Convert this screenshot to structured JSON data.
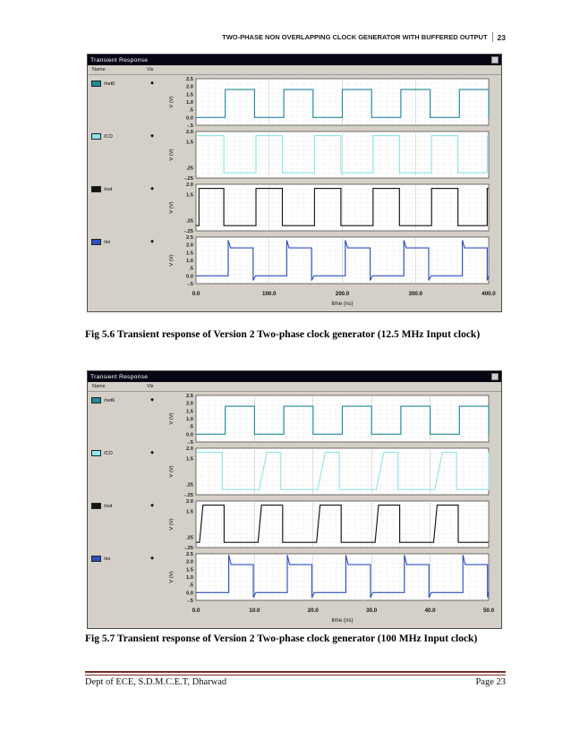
{
  "header": {
    "title": "TWO-PHASE NON OVERLAPPING CLOCK GENERATOR WITH BUFFERED OUTPUT",
    "page_number": "23"
  },
  "captions": [
    {
      "text": "Fig 5.6 Transient response of Version 2 Two-phase clock generator (12.5 MHz Input clock)"
    },
    {
      "text": "Fig 5.7 Transient response of Version 2 Two-phase clock generator (100 MHz Input clock)"
    }
  ],
  "footer": {
    "left": "Dept of ECE, S.D.M.C.E.T, Dharwad",
    "right": "Page 23",
    "rule_color": "#7b2927"
  },
  "chart_data": [
    {
      "type": "line",
      "window_title": "Transient Response",
      "legend_columns": {
        "name": "Name",
        "vis": "Vis"
      },
      "xlabel": "time (ns)",
      "x_range": [
        0,
        400
      ],
      "x_ticks": [
        {
          "label": "0.0",
          "value": 0
        },
        {
          "label": "100.0",
          "value": 100
        },
        {
          "label": "200.0",
          "value": 200
        },
        {
          "label": "300.0",
          "value": 300
        },
        {
          "label": "400.0",
          "value": 400
        }
      ],
      "signals": [
        {
          "name": "/net6",
          "color": "#1f8a99",
          "ylabel": "V (V)",
          "y_range": [
            -0.5,
            2.5
          ],
          "y_ticks": [
            {
              "label": "2.5",
              "value": 2.5
            },
            {
              "label": "2.0",
              "value": 2.0
            },
            {
              "label": "1.5",
              "value": 1.5
            },
            {
              "label": "1.0",
              "value": 1.0
            },
            {
              "label": ".5",
              "value": 0.5
            },
            {
              "label": "0.0",
              "value": 0.0
            },
            {
              "label": "-.5",
              "value": -0.5
            }
          ],
          "low": 0,
          "high": 1.8,
          "initial_level": "low",
          "toggle_times_ns": [
            40,
            80,
            120,
            160,
            200,
            240,
            280,
            320,
            360,
            400
          ]
        },
        {
          "name": "/CO",
          "color": "#8fe6ea",
          "ylabel": "V (V)",
          "y_range": [
            -0.25,
            2.0
          ],
          "y_ticks": [
            {
              "label": "2.0",
              "value": 2.0
            },
            {
              "label": "1.5",
              "value": 1.5
            },
            {
              "label": ".25",
              "value": 0.25
            },
            {
              "label": "-.25",
              "value": -0.25
            }
          ],
          "low": 0,
          "high": 1.8,
          "initial_level": "high",
          "toggle_times_ns": [
            38,
            82,
            118,
            162,
            198,
            242,
            278,
            322,
            358,
            398
          ]
        },
        {
          "name": "/out",
          "color": "#141414",
          "ylabel": "V (V)",
          "y_range": [
            -0.25,
            2.0
          ],
          "y_ticks": [
            {
              "label": "2.0",
              "value": 2.0
            },
            {
              "label": "1.5",
              "value": 1.5
            },
            {
              "label": ".25",
              "value": 0.25
            },
            {
              "label": "-.25",
              "value": -0.25
            }
          ],
          "low": 0,
          "high": 1.8,
          "initial_level": "low",
          "toggle_times_ns": [
            4,
            38,
            82,
            118,
            162,
            198,
            242,
            278,
            322,
            358,
            398
          ]
        },
        {
          "name": "/xo",
          "color": "#2d4fc0",
          "ylabel": "V (V)",
          "y_range": [
            -0.5,
            2.5
          ],
          "y_ticks": [
            {
              "label": "2.5",
              "value": 2.5
            },
            {
              "label": "2.0",
              "value": 2.0
            },
            {
              "label": "1.5",
              "value": 1.5
            },
            {
              "label": "1.0",
              "value": 1.0
            },
            {
              "label": ".5",
              "value": 0.5
            },
            {
              "label": "0.0",
              "value": 0.0
            },
            {
              "label": "-.5",
              "value": -0.5
            }
          ],
          "low": 0,
          "high": 1.8,
          "initial_level": "low",
          "overshoot": 2.3,
          "undershoot": -0.3,
          "toggle_times_ns": [
            44,
            78,
            124,
            158,
            204,
            238,
            284,
            318,
            364,
            398
          ]
        }
      ]
    },
    {
      "type": "line",
      "window_title": "Transient Response",
      "legend_columns": {
        "name": "Name",
        "vis": "Vis"
      },
      "xlabel": "time (ns)",
      "x_range": [
        0,
        50
      ],
      "x_ticks": [
        {
          "label": "0.0",
          "value": 0
        },
        {
          "label": "10.0",
          "value": 10
        },
        {
          "label": "20.0",
          "value": 20
        },
        {
          "label": "30.0",
          "value": 30
        },
        {
          "label": "40.0",
          "value": 40
        },
        {
          "label": "50.0",
          "value": 50
        }
      ],
      "signals": [
        {
          "name": "/net6",
          "color": "#1f8a99",
          "ylabel": "V (V)",
          "y_range": [
            -0.5,
            2.5
          ],
          "y_ticks": [
            {
              "label": "2.5",
              "value": 2.5
            },
            {
              "label": "2.0",
              "value": 2.0
            },
            {
              "label": "1.5",
              "value": 1.5
            },
            {
              "label": "1.0",
              "value": 1.0
            },
            {
              "label": ".5",
              "value": 0.5
            },
            {
              "label": "0.0",
              "value": 0.0
            },
            {
              "label": "-.5",
              "value": -0.5
            }
          ],
          "low": 0,
          "high": 1.8,
          "initial_level": "low",
          "toggle_times_ns": [
            5,
            10,
            15,
            20,
            25,
            30,
            35,
            40,
            45,
            50
          ]
        },
        {
          "name": "/CO",
          "color": "#8fe6ea",
          "ylabel": "V (V)",
          "y_range": [
            -0.25,
            2.0
          ],
          "y_ticks": [
            {
              "label": "2.0",
              "value": 2.0
            },
            {
              "label": "1.5",
              "value": 1.5
            },
            {
              "label": ".25",
              "value": 0.25
            },
            {
              "label": "-.25",
              "value": -0.25
            }
          ],
          "low": 0,
          "high": 1.8,
          "initial_level": "high",
          "rise_ns": 1.3,
          "toggle_times_ns": [
            4.5,
            10.8,
            14.5,
            20.8,
            24.5,
            30.8,
            34.5,
            40.8,
            44.5,
            50
          ]
        },
        {
          "name": "/out",
          "color": "#141414",
          "ylabel": "V (V)",
          "y_range": [
            -0.25,
            2.0
          ],
          "y_ticks": [
            {
              "label": "2.0",
              "value": 2.0
            },
            {
              "label": "1.5",
              "value": 1.5
            },
            {
              "label": ".25",
              "value": 0.25
            },
            {
              "label": "-.25",
              "value": -0.25
            }
          ],
          "low": 0,
          "high": 1.8,
          "initial_level": "low",
          "rise_ns": 0.6,
          "toggle_times_ns": [
            0.6,
            4.8,
            10.6,
            14.8,
            20.6,
            24.8,
            30.6,
            34.8,
            40.6,
            44.8
          ]
        },
        {
          "name": "/xo",
          "color": "#2d4fc0",
          "ylabel": "V (V)",
          "y_range": [
            -0.5,
            2.5
          ],
          "y_ticks": [
            {
              "label": "2.5",
              "value": 2.5
            },
            {
              "label": "2.0",
              "value": 2.0
            },
            {
              "label": "1.5",
              "value": 1.5
            },
            {
              "label": "1.0",
              "value": 1.0
            },
            {
              "label": ".5",
              "value": 0.5
            },
            {
              "label": "0.0",
              "value": 0.0
            },
            {
              "label": "-.5",
              "value": -0.5
            }
          ],
          "low": 0,
          "high": 1.8,
          "initial_level": "low",
          "overshoot": 2.42,
          "undershoot": -0.32,
          "toggle_times_ns": [
            5.6,
            9.8,
            15.6,
            19.8,
            25.6,
            29.8,
            35.6,
            39.8,
            45.6,
            49.8
          ]
        }
      ]
    }
  ]
}
